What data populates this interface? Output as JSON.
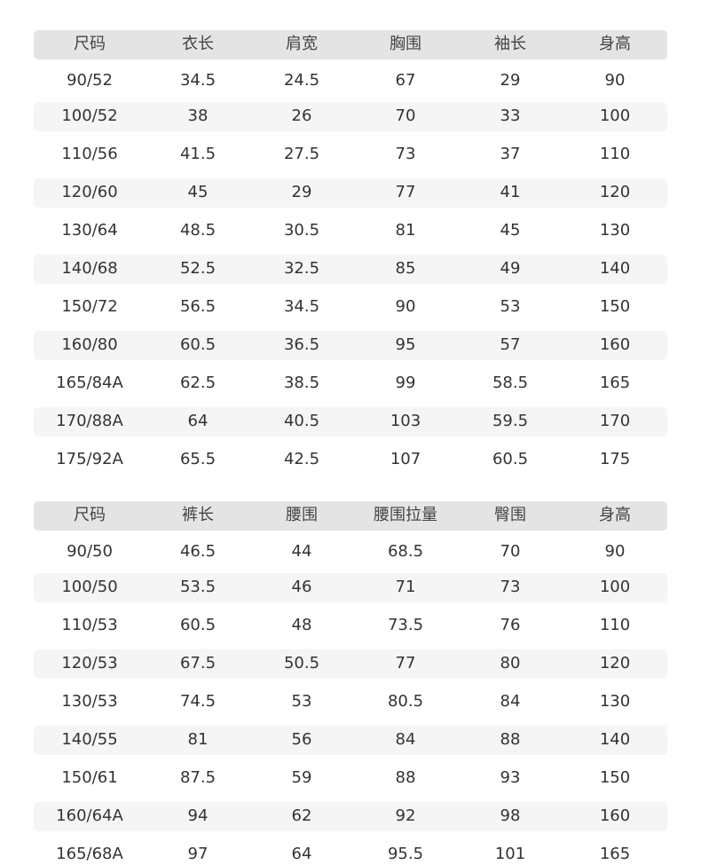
{
  "tables": [
    {
      "header": [
        "尺码",
        "衣长",
        "肩宽",
        "胸围",
        "袖长",
        "身高"
      ],
      "rows": [
        [
          "90/52",
          "34.5",
          "24.5",
          "67",
          "29",
          "90"
        ],
        [
          "100/52",
          "38",
          "26",
          "70",
          "33",
          "100"
        ],
        [
          "110/56",
          "41.5",
          "27.5",
          "73",
          "37",
          "110"
        ],
        [
          "120/60",
          "45",
          "29",
          "77",
          "41",
          "120"
        ],
        [
          "130/64",
          "48.5",
          "30.5",
          "81",
          "45",
          "130"
        ],
        [
          "140/68",
          "52.5",
          "32.5",
          "85",
          "49",
          "140"
        ],
        [
          "150/72",
          "56.5",
          "34.5",
          "90",
          "53",
          "150"
        ],
        [
          "160/80",
          "60.5",
          "36.5",
          "95",
          "57",
          "160"
        ],
        [
          "165/84A",
          "62.5",
          "38.5",
          "99",
          "58.5",
          "165"
        ],
        [
          "170/88A",
          "64",
          "40.5",
          "103",
          "59.5",
          "170"
        ],
        [
          "175/92A",
          "65.5",
          "42.5",
          "107",
          "60.5",
          "175"
        ]
      ]
    },
    {
      "header": [
        "尺码",
        "裤长",
        "腰围",
        "腰围拉量",
        "臀围",
        "身高"
      ],
      "rows": [
        [
          "90/50",
          "46.5",
          "44",
          "68.5",
          "70",
          "90"
        ],
        [
          "100/50",
          "53.5",
          "46",
          "71",
          "73",
          "100"
        ],
        [
          "110/53",
          "60.5",
          "48",
          "73.5",
          "76",
          "110"
        ],
        [
          "120/53",
          "67.5",
          "50.5",
          "77",
          "80",
          "120"
        ],
        [
          "130/53",
          "74.5",
          "53",
          "80.5",
          "84",
          "130"
        ],
        [
          "140/55",
          "81",
          "56",
          "84",
          "88",
          "140"
        ],
        [
          "150/61",
          "87.5",
          "59",
          "88",
          "93",
          "150"
        ],
        [
          "160/64A",
          "94",
          "62",
          "92",
          "98",
          "160"
        ],
        [
          "165/68A",
          "97",
          "64",
          "95.5",
          "101",
          "165"
        ]
      ]
    }
  ]
}
